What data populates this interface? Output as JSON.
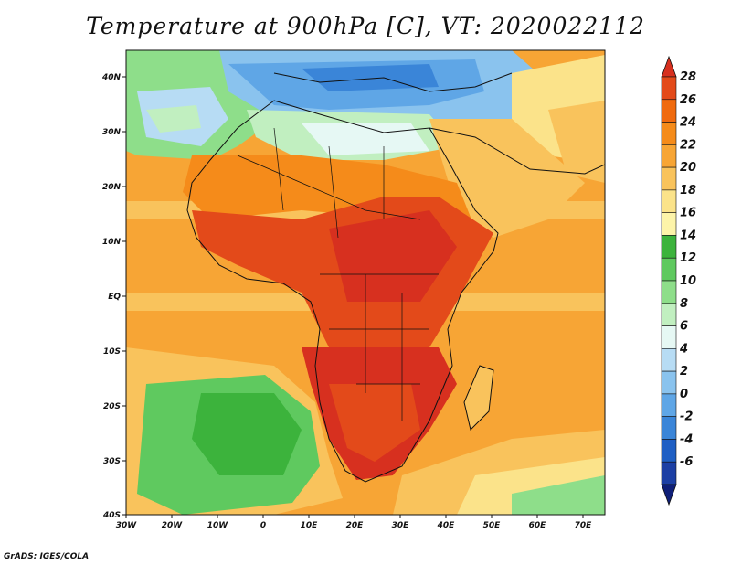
{
  "title": "Temperature at 900hPa [C], VT: 2020022112",
  "credit": "GrADS: IGES/COLA",
  "axes": {
    "lon_labels": [
      "30W",
      "20W",
      "10W",
      "0",
      "10E",
      "20E",
      "30E",
      "40E",
      "50E",
      "60E",
      "70E"
    ],
    "lat_labels": [
      "40N",
      "30N",
      "20N",
      "10N",
      "EQ",
      "10S",
      "20S",
      "30S",
      "40S"
    ]
  },
  "colorbar": {
    "labels": [
      "28",
      "26",
      "24",
      "22",
      "20",
      "18",
      "16",
      "14",
      "12",
      "10",
      "8",
      "6",
      "4",
      "2",
      "0",
      "-2",
      "-4",
      "-6"
    ],
    "colors": [
      "#d7301f",
      "#e34a1a",
      "#f06a0e",
      "#f58b1a",
      "#f7a535",
      "#f9c35c",
      "#fbe38a",
      "#fdf4a9",
      "#3cb33c",
      "#5fc95f",
      "#8ede8a",
      "#c1efc0",
      "#e6f8f4",
      "#b7dcf4",
      "#8ac3ee",
      "#5fa6e6",
      "#3a85d8",
      "#1f5fc4",
      "#1c3fa4",
      "#0f1f78"
    ]
  },
  "map": {
    "lon_range": [
      -30,
      75
    ],
    "lat_range": [
      -40,
      45
    ],
    "colors": {
      "ocean_warm": "#f7a535",
      "ocean_mild": "#f9c35c",
      "south_atlantic_cool": "#5fc95f",
      "north_atlantic_green": "#8ede8a",
      "sahara_warm": "#f58b1a",
      "central_africa_hot": "#e34a1a",
      "southern_africa_hot": "#d7301f",
      "mediterranean_cold": "#5fa6e6",
      "north_africa_cool": "#b7dcf4",
      "arabia": "#f7a535"
    }
  }
}
